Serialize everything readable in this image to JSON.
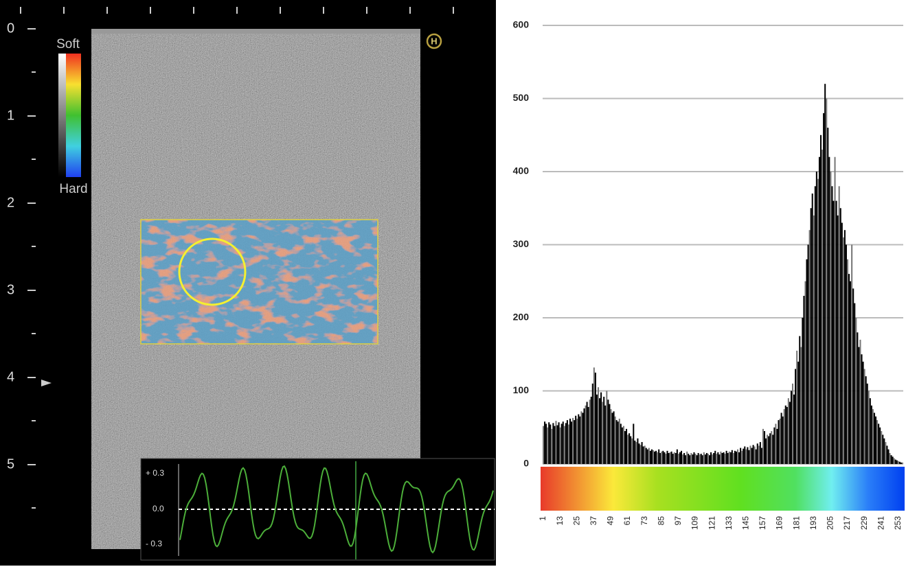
{
  "left_panel": {
    "depth_labels": [
      "0",
      "1",
      "2",
      "3",
      "4",
      "5"
    ],
    "colorbar_top": "Soft",
    "colorbar_bottom": "Hard",
    "marker": "H",
    "waveform_labels": [
      "+ 0.3",
      "0.0",
      "- 0.3"
    ]
  },
  "chart_data": {
    "type": "bar",
    "color": "#000000",
    "grid": true,
    "xlim": [
      0.5,
      256.5
    ],
    "ylim": [
      0,
      600
    ],
    "yticks": [
      0,
      100,
      200,
      300,
      400,
      500,
      600
    ],
    "xticks": [
      1,
      13,
      25,
      37,
      49,
      61,
      73,
      85,
      97,
      109,
      121,
      133,
      145,
      157,
      169,
      181,
      193,
      205,
      217,
      229,
      241,
      253
    ],
    "x": [
      1,
      2,
      3,
      4,
      5,
      6,
      7,
      8,
      9,
      10,
      11,
      12,
      13,
      14,
      15,
      16,
      17,
      18,
      19,
      20,
      21,
      22,
      23,
      24,
      25,
      26,
      27,
      28,
      29,
      30,
      31,
      32,
      33,
      34,
      35,
      36,
      37,
      38,
      39,
      40,
      41,
      42,
      43,
      44,
      45,
      46,
      47,
      48,
      49,
      50,
      51,
      52,
      53,
      54,
      55,
      56,
      57,
      58,
      59,
      60,
      61,
      62,
      63,
      64,
      65,
      66,
      67,
      68,
      69,
      70,
      71,
      72,
      73,
      74,
      75,
      76,
      77,
      78,
      79,
      80,
      81,
      82,
      83,
      84,
      85,
      86,
      87,
      88,
      89,
      90,
      91,
      92,
      93,
      94,
      95,
      96,
      97,
      98,
      99,
      100,
      101,
      102,
      103,
      104,
      105,
      106,
      107,
      108,
      109,
      110,
      111,
      112,
      113,
      114,
      115,
      116,
      117,
      118,
      119,
      120,
      121,
      122,
      123,
      124,
      125,
      126,
      127,
      128,
      129,
      130,
      131,
      132,
      133,
      134,
      135,
      136,
      137,
      138,
      139,
      140,
      141,
      142,
      143,
      144,
      145,
      146,
      147,
      148,
      149,
      150,
      151,
      152,
      153,
      154,
      155,
      156,
      157,
      158,
      159,
      160,
      161,
      162,
      163,
      164,
      165,
      166,
      167,
      168,
      169,
      170,
      171,
      172,
      173,
      174,
      175,
      176,
      177,
      178,
      179,
      180,
      181,
      182,
      183,
      184,
      185,
      186,
      187,
      188,
      189,
      190,
      191,
      192,
      193,
      194,
      195,
      196,
      197,
      198,
      199,
      200,
      201,
      202,
      203,
      204,
      205,
      206,
      207,
      208,
      209,
      210,
      211,
      212,
      213,
      214,
      215,
      216,
      217,
      218,
      219,
      220,
      221,
      222,
      223,
      224,
      225,
      226,
      227,
      228,
      229,
      230,
      231,
      232,
      233,
      234,
      235,
      236,
      237,
      238,
      239,
      240,
      241,
      242,
      243,
      244,
      245,
      246,
      247,
      248,
      249,
      250,
      251,
      252,
      253,
      254,
      255,
      256
    ],
    "values": [
      52,
      58,
      55,
      50,
      57,
      54,
      48,
      56,
      52,
      59,
      53,
      57,
      50,
      55,
      58,
      52,
      56,
      60,
      54,
      62,
      58,
      63,
      60,
      66,
      62,
      68,
      65,
      72,
      70,
      76,
      80,
      85,
      78,
      88,
      92,
      110,
      132,
      125,
      95,
      105,
      90,
      98,
      85,
      92,
      80,
      100,
      88,
      82,
      75,
      70,
      72,
      65,
      60,
      58,
      62,
      55,
      50,
      52,
      45,
      48,
      40,
      42,
      38,
      35,
      55,
      32,
      30,
      35,
      28,
      26,
      30,
      24,
      25,
      22,
      20,
      22,
      18,
      20,
      19,
      17,
      18,
      16,
      20,
      15,
      17,
      18,
      16,
      14,
      18,
      15,
      16,
      17,
      14,
      16,
      15,
      20,
      14,
      16,
      18,
      13,
      15,
      12,
      17,
      14,
      12,
      15,
      13,
      16,
      14,
      12,
      15,
      13,
      14,
      12,
      16,
      13,
      15,
      14,
      12,
      16,
      13,
      15,
      18,
      14,
      16,
      13,
      17,
      15,
      16,
      14,
      18,
      15,
      17,
      16,
      19,
      15,
      18,
      17,
      20,
      16,
      22,
      18,
      21,
      24,
      20,
      23,
      19,
      25,
      22,
      26,
      24,
      20,
      28,
      25,
      30,
      22,
      48,
      45,
      35,
      40,
      38,
      42,
      45,
      40,
      50,
      55,
      48,
      60,
      62,
      70,
      65,
      75,
      80,
      78,
      90,
      85,
      100,
      110,
      95,
      130,
      155,
      140,
      175,
      160,
      200,
      230,
      250,
      280,
      300,
      320,
      350,
      370,
      340,
      380,
      400,
      390,
      420,
      450,
      430,
      480,
      520,
      500,
      460,
      420,
      400,
      380,
      360,
      420,
      360,
      340,
      380,
      350,
      330,
      310,
      320,
      300,
      280,
      260,
      250,
      300,
      240,
      220,
      200,
      180,
      160,
      170,
      150,
      140,
      130,
      120,
      110,
      100,
      90,
      80,
      75,
      70,
      65,
      60,
      55,
      50,
      45,
      40,
      35,
      30,
      25,
      20,
      15,
      12,
      10,
      8,
      6,
      5,
      4,
      3,
      2,
      2
    ]
  }
}
